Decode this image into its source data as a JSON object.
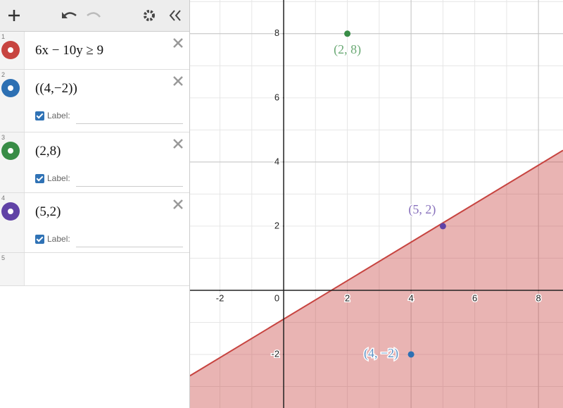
{
  "expressions": [
    {
      "number": "1",
      "text": "6x − 10y ≥ 9",
      "color": "#c74440"
    },
    {
      "number": "2",
      "text": "((4,−2))",
      "label": "Label:",
      "color": "#2d70b3"
    },
    {
      "number": "3",
      "text": "(2,8)",
      "label": "Label:",
      "color": "#388c46"
    },
    {
      "number": "4",
      "text": "(5,2)",
      "label": "Label:",
      "color": "#6042a6"
    },
    {
      "number": "5"
    }
  ],
  "graph": {
    "xlim": [
      -2.94,
      8.77
    ],
    "ylim": [
      -3.67,
      9.05
    ],
    "xticks": [
      -2,
      2,
      4,
      6,
      8
    ],
    "yticks": [
      -2,
      2,
      4,
      6,
      8
    ],
    "origin_label": "0",
    "inequality": {
      "a": 6,
      "b": -10,
      "c": 9,
      "color": "#c74440"
    },
    "points": [
      {
        "x": 4,
        "y": -2,
        "label": "(4, −2)",
        "color": "#2d70b3"
      },
      {
        "x": 2,
        "y": 8,
        "label": "(2, 8)",
        "color": "#388c46"
      },
      {
        "x": 5,
        "y": 2,
        "label": "(5, 2)",
        "color": "#6042a6"
      }
    ]
  }
}
